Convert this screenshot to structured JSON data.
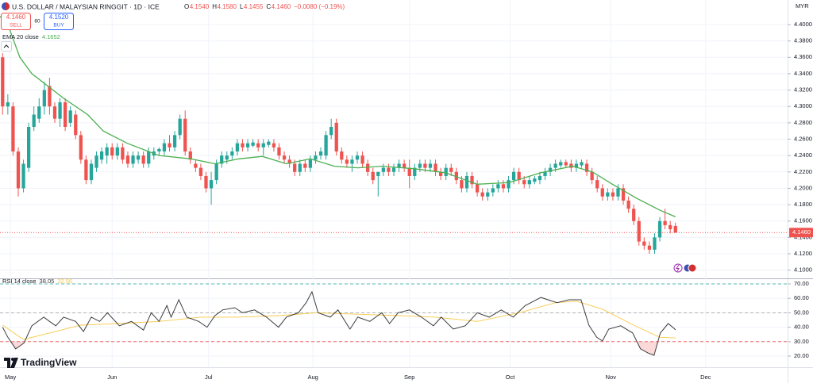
{
  "trade_panel": {
    "sell_price": "4.1460",
    "sell": "SELL",
    "spread": "60",
    "buy_price": "4.1520",
    "buy": "BUY"
  },
  "branding": "TradingView",
  "chart_data": [
    {
      "type": "candlestick",
      "title": "U.S. DOLLAR / MALAYSIAN RINGGIT · 1D · ICE",
      "ohlc_readout": [
        "O",
        "4.1540",
        "H",
        "4.1580",
        "L",
        "4.1455",
        "C",
        "4.1460",
        "−0.0080 (−0.19%)"
      ],
      "currency": "MYR",
      "up_color": "#26a69a",
      "down_color": "#ef5350",
      "candles": [
        [
          4.36,
          4.365,
          4.29,
          4.3
        ],
        [
          4.3,
          4.315,
          4.29,
          4.305
        ],
        [
          4.3,
          4.305,
          4.24,
          4.245
        ],
        [
          4.245,
          4.25,
          4.19,
          4.2
        ],
        [
          4.2,
          4.235,
          4.195,
          4.23
        ],
        [
          4.225,
          4.28,
          4.22,
          4.275
        ],
        [
          4.275,
          4.3,
          4.27,
          4.29
        ],
        [
          4.285,
          4.31,
          4.28,
          4.3
        ],
        [
          4.3,
          4.33,
          4.29,
          4.32
        ],
        [
          4.325,
          4.335,
          4.29,
          4.3
        ],
        [
          4.3,
          4.305,
          4.28,
          4.285
        ],
        [
          4.285,
          4.31,
          4.275,
          4.305
        ],
        [
          4.305,
          4.31,
          4.27,
          4.275
        ],
        [
          4.28,
          4.3,
          4.275,
          4.295
        ],
        [
          4.29,
          4.295,
          4.26,
          4.265
        ],
        [
          4.265,
          4.27,
          4.23,
          4.235
        ],
        [
          4.235,
          4.24,
          4.205,
          4.21
        ],
        [
          4.21,
          4.235,
          4.205,
          4.23
        ],
        [
          4.225,
          4.245,
          4.22,
          4.24
        ],
        [
          4.235,
          4.25,
          4.23,
          4.245
        ],
        [
          4.24,
          4.255,
          4.23,
          4.25
        ],
        [
          4.25,
          4.255,
          4.235,
          4.24
        ],
        [
          4.24,
          4.255,
          4.235,
          4.25
        ],
        [
          4.25,
          4.255,
          4.23,
          4.235
        ],
        [
          4.24,
          4.245,
          4.225,
          4.23
        ],
        [
          4.23,
          4.245,
          4.225,
          4.24
        ],
        [
          4.235,
          4.245,
          4.23,
          4.24
        ],
        [
          4.24,
          4.245,
          4.225,
          4.23
        ],
        [
          4.23,
          4.25,
          4.225,
          4.245
        ],
        [
          4.24,
          4.25,
          4.235,
          4.245
        ],
        [
          4.245,
          4.25,
          4.24,
          4.248
        ],
        [
          4.245,
          4.26,
          4.24,
          4.255
        ],
        [
          4.255,
          4.265,
          4.245,
          4.25
        ],
        [
          4.25,
          4.27,
          4.245,
          4.265
        ],
        [
          4.265,
          4.29,
          4.26,
          4.285
        ],
        [
          4.285,
          4.295,
          4.24,
          4.245
        ],
        [
          4.245,
          4.25,
          4.23,
          4.235
        ],
        [
          4.23,
          4.235,
          4.22,
          4.225
        ],
        [
          4.225,
          4.23,
          4.21,
          4.215
        ],
        [
          4.215,
          4.22,
          4.195,
          4.2
        ],
        [
          4.2,
          4.22,
          4.18,
          4.21
        ],
        [
          4.21,
          4.235,
          4.205,
          4.23
        ],
        [
          4.23,
          4.245,
          4.225,
          4.24
        ],
        [
          4.235,
          4.245,
          4.23,
          4.24
        ],
        [
          4.24,
          4.25,
          4.235,
          4.245
        ],
        [
          4.245,
          4.26,
          4.24,
          4.255
        ],
        [
          4.255,
          4.26,
          4.245,
          4.25
        ],
        [
          4.25,
          4.26,
          4.245,
          4.255
        ],
        [
          4.252,
          4.26,
          4.25,
          4.256
        ],
        [
          4.255,
          4.26,
          4.245,
          4.25
        ],
        [
          4.25,
          4.26,
          4.24,
          4.255
        ],
        [
          4.253,
          4.26,
          4.25,
          4.257
        ],
        [
          4.255,
          4.26,
          4.245,
          4.25
        ],
        [
          4.25,
          4.255,
          4.235,
          4.24
        ],
        [
          4.24,
          4.245,
          4.23,
          4.235
        ],
        [
          4.235,
          4.24,
          4.225,
          4.23
        ],
        [
          4.23,
          4.235,
          4.215,
          4.22
        ],
        [
          4.22,
          4.235,
          4.215,
          4.23
        ],
        [
          4.23,
          4.235,
          4.22,
          4.225
        ],
        [
          4.225,
          4.24,
          4.22,
          4.235
        ],
        [
          4.235,
          4.245,
          4.23,
          4.24
        ],
        [
          4.24,
          4.25,
          4.235,
          4.245
        ],
        [
          4.24,
          4.27,
          4.235,
          4.265
        ],
        [
          4.265,
          4.285,
          4.26,
          4.275
        ],
        [
          4.28,
          4.285,
          4.24,
          4.245
        ],
        [
          4.245,
          4.25,
          4.23,
          4.235
        ],
        [
          4.235,
          4.24,
          4.225,
          4.23
        ],
        [
          4.23,
          4.24,
          4.22,
          4.235
        ],
        [
          4.235,
          4.245,
          4.23,
          4.24
        ],
        [
          4.24,
          4.245,
          4.225,
          4.23
        ],
        [
          4.23,
          4.235,
          4.215,
          4.22
        ],
        [
          4.22,
          4.225,
          4.205,
          4.21
        ],
        [
          4.215,
          4.22,
          4.19,
          4.22
        ],
        [
          4.22,
          4.23,
          4.215,
          4.225
        ],
        [
          4.225,
          4.23,
          4.215,
          4.22
        ],
        [
          4.22,
          4.23,
          4.215,
          4.225
        ],
        [
          4.225,
          4.235,
          4.22,
          4.23
        ],
        [
          4.23,
          4.235,
          4.22,
          4.225
        ],
        [
          4.225,
          4.235,
          4.2,
          4.215
        ],
        [
          4.215,
          4.23,
          4.21,
          4.225
        ],
        [
          4.225,
          4.235,
          4.22,
          4.23
        ],
        [
          4.23,
          4.235,
          4.22,
          4.225
        ],
        [
          4.225,
          4.235,
          4.22,
          4.23
        ],
        [
          4.23,
          4.235,
          4.215,
          4.22
        ],
        [
          4.22,
          4.225,
          4.21,
          4.215
        ],
        [
          4.215,
          4.23,
          4.21,
          4.225
        ],
        [
          4.225,
          4.23,
          4.215,
          4.22
        ],
        [
          4.22,
          4.225,
          4.205,
          4.21
        ],
        [
          4.21,
          4.215,
          4.195,
          4.2
        ],
        [
          4.2,
          4.22,
          4.195,
          4.215
        ],
        [
          4.215,
          4.22,
          4.2,
          4.205
        ],
        [
          4.205,
          4.21,
          4.19,
          4.195
        ],
        [
          4.195,
          4.2,
          4.185,
          4.19
        ],
        [
          4.19,
          4.2,
          4.185,
          4.195
        ],
        [
          4.195,
          4.205,
          4.19,
          4.2
        ],
        [
          4.2,
          4.21,
          4.195,
          4.205
        ],
        [
          4.205,
          4.21,
          4.195,
          4.2
        ],
        [
          4.2,
          4.215,
          4.195,
          4.21
        ],
        [
          4.21,
          4.225,
          4.205,
          4.22
        ],
        [
          4.22,
          4.225,
          4.205,
          4.21
        ],
        [
          4.21,
          4.215,
          4.2,
          4.205
        ],
        [
          4.205,
          4.215,
          4.2,
          4.21
        ],
        [
          4.208,
          4.215,
          4.205,
          4.212
        ],
        [
          4.21,
          4.22,
          4.205,
          4.215
        ],
        [
          4.215,
          4.225,
          4.21,
          4.22
        ],
        [
          4.22,
          4.23,
          4.215,
          4.225
        ],
        [
          4.225,
          4.235,
          4.22,
          4.23
        ],
        [
          4.228,
          4.235,
          4.225,
          4.232
        ],
        [
          4.232,
          4.235,
          4.225,
          4.228
        ],
        [
          4.23,
          4.235,
          4.22,
          4.225
        ],
        [
          4.225,
          4.235,
          4.22,
          4.23
        ],
        [
          4.228,
          4.235,
          4.225,
          4.232
        ],
        [
          4.23,
          4.235,
          4.215,
          4.22
        ],
        [
          4.22,
          4.225,
          4.205,
          4.21
        ],
        [
          4.21,
          4.215,
          4.195,
          4.2
        ],
        [
          4.2,
          4.205,
          4.185,
          4.19
        ],
        [
          4.19,
          4.2,
          4.185,
          4.195
        ],
        [
          4.195,
          4.2,
          4.185,
          4.19
        ],
        [
          4.19,
          4.205,
          4.185,
          4.2
        ],
        [
          4.2,
          4.205,
          4.18,
          4.185
        ],
        [
          4.185,
          4.19,
          4.17,
          4.175
        ],
        [
          4.175,
          4.18,
          4.155,
          4.16
        ],
        [
          4.16,
          4.165,
          4.13,
          4.135
        ],
        [
          4.135,
          4.14,
          4.125,
          4.13
        ],
        [
          4.13,
          4.135,
          4.12,
          4.125
        ],
        [
          4.125,
          4.145,
          4.12,
          4.14
        ],
        [
          4.14,
          4.165,
          4.135,
          4.16
        ],
        [
          4.16,
          4.175,
          4.15,
          4.155
        ],
        [
          4.155,
          4.16,
          4.145,
          4.15
        ],
        [
          4.154,
          4.158,
          4.1455,
          4.146
        ]
      ],
      "overlays": [
        {
          "name": "EMA 20 close",
          "value_label": "4.1652",
          "color": "#4caf50",
          "x": [
            -0.5,
            1,
            3.3,
            5.6,
            11.7,
            16.3,
            19.3,
            23.9,
            30,
            36.1,
            40.7,
            45.3,
            49.8,
            54.4,
            59,
            63.6,
            68.1,
            72.7,
            78.8,
            84.9,
            91,
            97.1,
            103.2,
            109.3,
            113.1,
            116.9,
            121.5,
            126.1,
            129
          ],
          "values": [
            4.41,
            4.4,
            4.36,
            4.34,
            4.31,
            4.29,
            4.27,
            4.255,
            4.24,
            4.236,
            4.23,
            4.236,
            4.239,
            4.23,
            4.236,
            4.227,
            4.225,
            4.227,
            4.224,
            4.219,
            4.205,
            4.207,
            4.219,
            4.227,
            4.22,
            4.205,
            4.188,
            4.173,
            4.1652
          ]
        }
      ],
      "last_price": {
        "value": 4.146,
        "label": "4.1460"
      },
      "xlim": [
        -0.5,
        150.5
      ],
      "xticks": [
        {
          "value": 1.5,
          "label": "May"
        },
        {
          "value": 21,
          "label": "Jun"
        },
        {
          "value": 39.5,
          "label": "Jul"
        },
        {
          "value": 59.5,
          "label": "Aug"
        },
        {
          "value": 78,
          "label": "Sep"
        },
        {
          "value": 97.3,
          "label": "Oct"
        },
        {
          "value": 116.6,
          "label": "Nov"
        },
        {
          "value": 134.8,
          "label": "Dec"
        }
      ],
      "ylim": [
        4.09,
        4.43
      ],
      "yticks": [
        {
          "value": 4.4,
          "label": "4.4000"
        },
        {
          "value": 4.38,
          "label": "4.3800"
        },
        {
          "value": 4.36,
          "label": "4.3600"
        },
        {
          "value": 4.34,
          "label": "4.3400"
        },
        {
          "value": 4.32,
          "label": "4.3200"
        },
        {
          "value": 4.3,
          "label": "4.3000"
        },
        {
          "value": 4.28,
          "label": "4.2800"
        },
        {
          "value": 4.26,
          "label": "4.2600"
        },
        {
          "value": 4.24,
          "label": "4.2400"
        },
        {
          "value": 4.22,
          "label": "4.2200"
        },
        {
          "value": 4.2,
          "label": "4.2000"
        },
        {
          "value": 4.18,
          "label": "4.1800"
        },
        {
          "value": 4.16,
          "label": "4.1600"
        },
        {
          "value": 4.14,
          "label": "4.1400"
        },
        {
          "value": 4.12,
          "label": "4.1200"
        },
        {
          "value": 4.1,
          "label": "4.1000"
        }
      ],
      "grid": true
    },
    {
      "type": "line",
      "title": "RSI 14 close",
      "series": [
        {
          "value_label": "38.05",
          "color": "#3c3c3c",
          "x": [
            0,
            1,
            2.5,
            4.1,
            5.6,
            7.9,
            9,
            10.2,
            11.7,
            14,
            15.5,
            17,
            18.6,
            20.1,
            22.4,
            24.7,
            27,
            28.5,
            30,
            31.5,
            32.3,
            33.8,
            35.3,
            37.6,
            39.2,
            40.7,
            42.2,
            44.5,
            46,
            48.3,
            50.6,
            52.9,
            54.4,
            56.7,
            58.2,
            59.3,
            60.5,
            62.8,
            64.3,
            66.6,
            68.1,
            70.4,
            72.7,
            74.2,
            75.8,
            78,
            80.3,
            82.6,
            84.1,
            86.4,
            88.7,
            91,
            93.3,
            95.6,
            97.9,
            100.2,
            103.2,
            106.3,
            108.6,
            110.9,
            112.4,
            113.9,
            115,
            116.2,
            118.5,
            120.8,
            122.3,
            123.8,
            124.9,
            126.1,
            127.6,
            128.8,
            129
          ],
          "values": [
            40,
            33,
            25,
            29,
            41,
            47,
            44,
            41,
            47,
            44,
            37,
            47,
            44,
            50,
            41,
            44,
            38,
            50,
            44,
            55,
            47,
            59,
            47,
            44,
            40,
            48,
            52,
            53.5,
            50,
            52,
            47,
            40,
            47,
            50,
            57,
            64.5,
            50,
            47,
            52,
            38.7,
            47,
            44,
            50,
            42.5,
            50,
            52,
            47,
            41,
            47,
            38.7,
            41,
            50,
            47,
            52,
            47,
            55,
            60.6,
            57,
            59,
            59,
            41.4,
            33,
            30.5,
            38.7,
            41,
            36,
            25,
            22,
            20.5,
            36,
            42.5,
            39,
            38.05
          ]
        },
        {
          "value_label": "32.56",
          "color": "#f7c948",
          "x": [
            0,
            4,
            9,
            15,
            22,
            30,
            38,
            45,
            53,
            60,
            68,
            76,
            83,
            91,
            99,
            106,
            110,
            115,
            121,
            126,
            129
          ],
          "values": [
            41.4,
            31.5,
            36,
            41.4,
            42.5,
            44,
            47,
            47,
            48,
            50,
            49,
            48,
            47,
            44,
            50,
            57,
            58,
            52.5,
            41.4,
            33,
            32.56
          ]
        }
      ],
      "reference_lines": [
        {
          "value": 70,
          "color": "#26a69a"
        },
        {
          "value": 50,
          "color": "#9e9e9e"
        },
        {
          "value": 30,
          "color": "#ef5350"
        }
      ],
      "oversold_color": "rgba(239,83,80,0.22)",
      "xlim": [
        -0.5,
        150.5
      ],
      "ylim": [
        12.3,
        73.3
      ],
      "yticks": [
        {
          "value": 70,
          "label": "70.00"
        },
        {
          "value": 60,
          "label": "60.00"
        },
        {
          "value": 50,
          "label": "50.00"
        },
        {
          "value": 40,
          "label": "40.00"
        },
        {
          "value": 30,
          "label": "30.00"
        },
        {
          "value": 20,
          "label": "20.00"
        }
      ],
      "grid": true
    }
  ]
}
